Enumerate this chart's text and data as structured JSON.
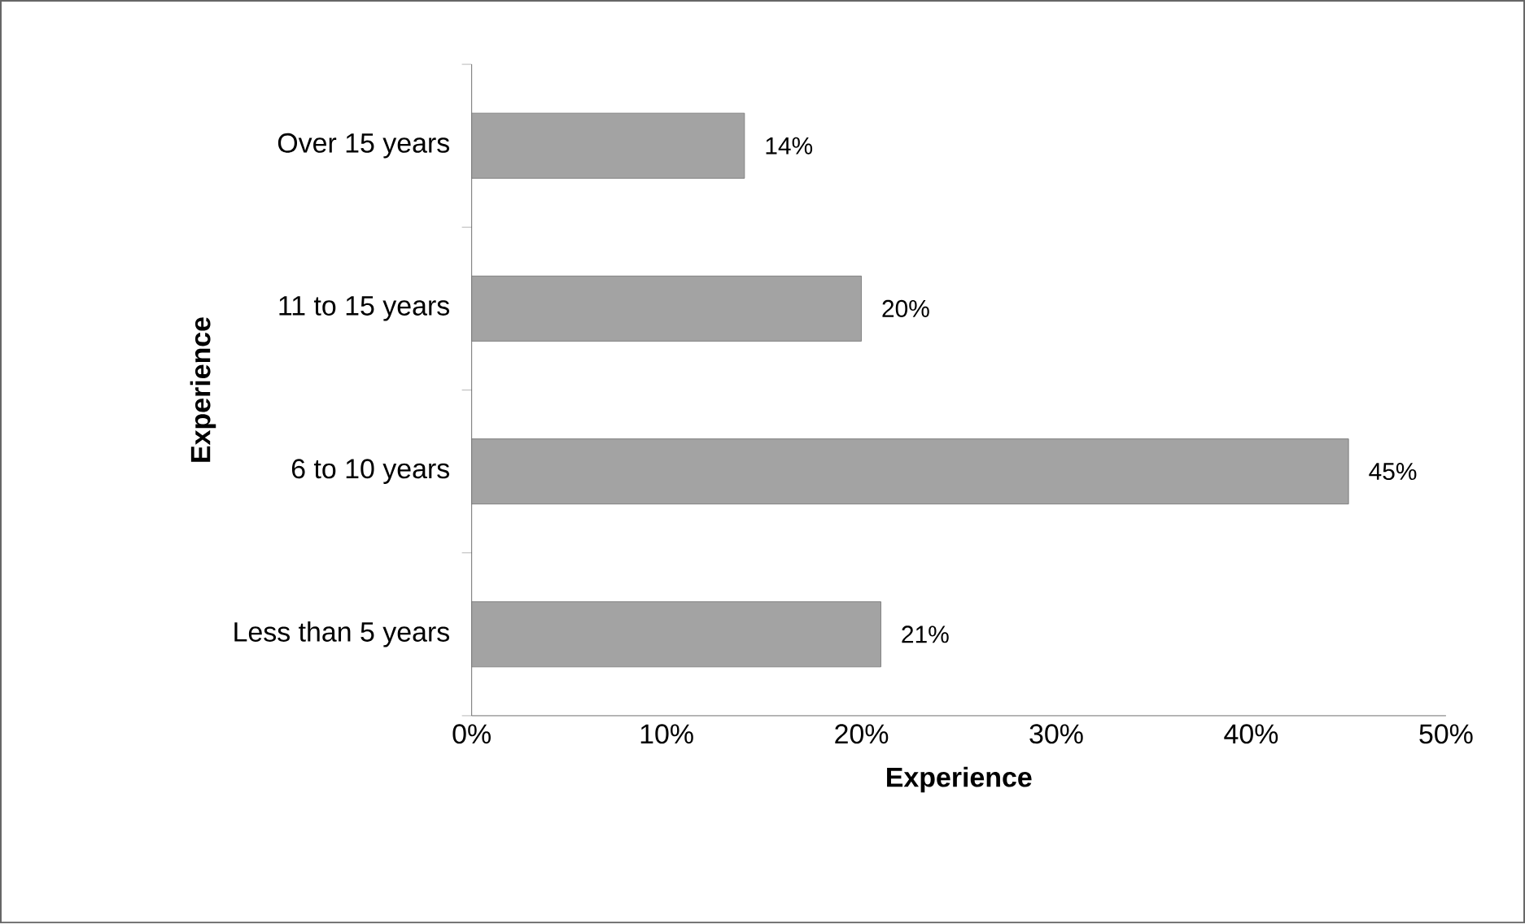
{
  "chart_data": {
    "type": "bar",
    "orientation": "horizontal",
    "xlabel": "Experience",
    "ylabel": "Experience",
    "categories": [
      "Over 15 years",
      "11 to 15 years",
      "6 to 10 years",
      "Less than 5 years"
    ],
    "values": [
      14,
      20,
      45,
      21
    ],
    "value_labels": [
      "14%",
      "20%",
      "45%",
      "21%"
    ],
    "color": "#a3a3a3",
    "xlim": [
      0,
      50
    ],
    "xticks": [
      {
        "value": 0,
        "label": "0%"
      },
      {
        "value": 10,
        "label": "10%"
      },
      {
        "value": 20,
        "label": "20%"
      },
      {
        "value": 30,
        "label": "30%"
      },
      {
        "value": 40,
        "label": "40%"
      },
      {
        "value": 50,
        "label": "50%"
      }
    ],
    "grid": false
  }
}
